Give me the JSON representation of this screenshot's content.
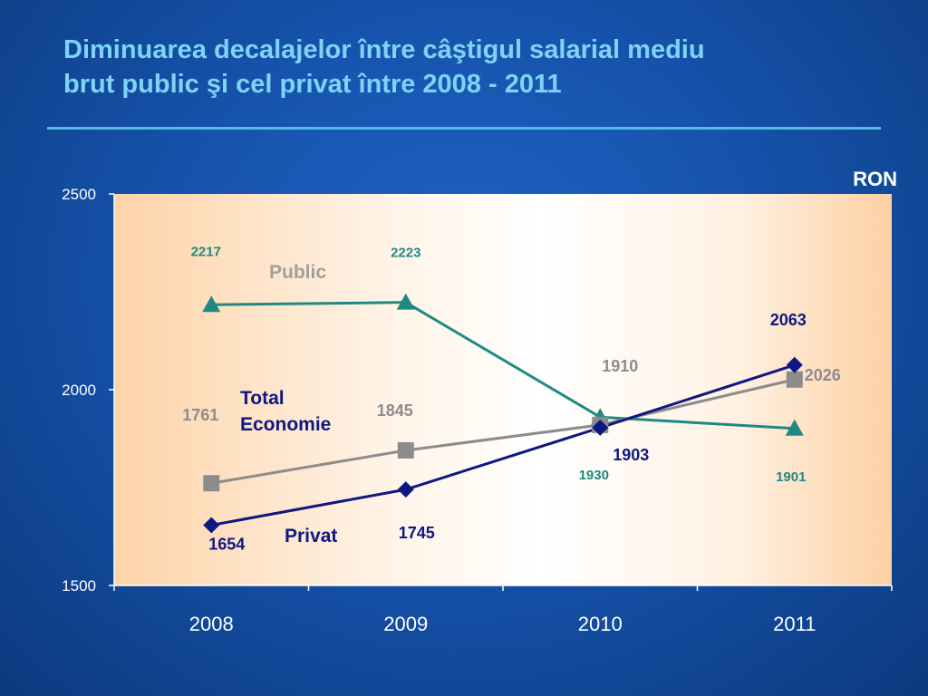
{
  "slide": {
    "title_line1": "Diminuarea decalajelor între câştigul salarial mediu",
    "title_line2": "brut public şi cel privat între 2008 - 2011"
  },
  "chart_data": {
    "type": "line",
    "unit": "RON",
    "categories": [
      "2008",
      "2009",
      "2010",
      "2011"
    ],
    "ylim": [
      1500,
      2500
    ],
    "yticks": [
      1500,
      2000,
      2500
    ],
    "grid": false,
    "series": [
      {
        "name": "Public",
        "values": [
          2217,
          2223,
          1930,
          1901
        ],
        "labels": [
          "2217",
          "2223",
          "1930",
          "1901"
        ],
        "color": "#1e8a82",
        "marker": "triangle"
      },
      {
        "name": "Total Economie",
        "values": [
          1761,
          1845,
          1910,
          2026
        ],
        "labels": [
          "1761",
          "1845",
          "1910",
          "2026"
        ],
        "color": "#8c8c8c",
        "marker": "square"
      },
      {
        "name": "Privat",
        "values": [
          1654,
          1745,
          1903,
          2063
        ],
        "labels": [
          "1654",
          "1745",
          "1903",
          "2063"
        ],
        "color": "#0f1882",
        "marker": "diamond"
      }
    ]
  }
}
